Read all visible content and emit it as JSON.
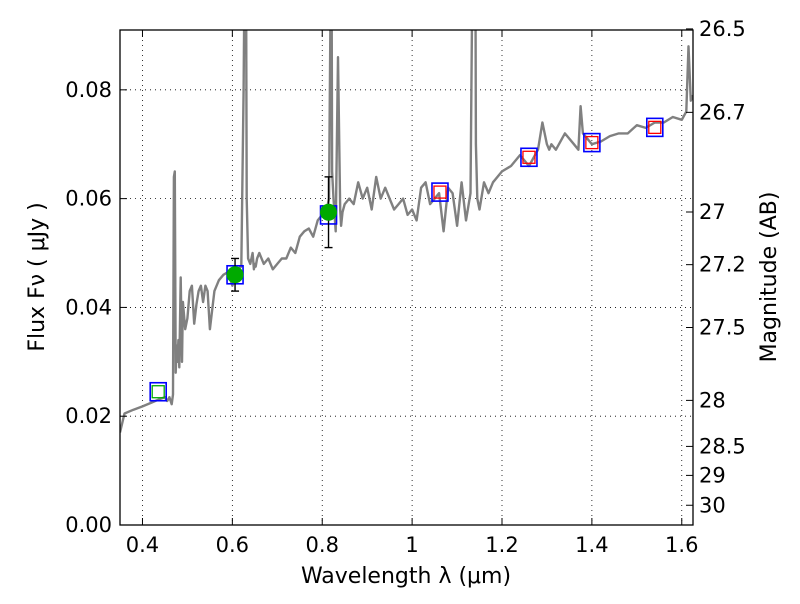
{
  "chart_data": {
    "type": "line",
    "xlabel": "Wavelength  λ (μm)",
    "ylabel": "Flux  Fν  ( μJy )",
    "ylabel_right": "Magnitude (AB)",
    "xlim": [
      0.35,
      1.625
    ],
    "ylim": [
      0.0,
      0.091
    ],
    "grid": true,
    "x_ticks": [
      0.4,
      0.6,
      0.8,
      1.0,
      1.2,
      1.4,
      1.6
    ],
    "x_tick_labels": [
      "0.4",
      "0.6",
      "0.8",
      "1",
      "1.2",
      "1.4",
      "1.6"
    ],
    "y_ticks": [
      0.0,
      0.02,
      0.04,
      0.06,
      0.08
    ],
    "y_tick_labels": [
      "0.00",
      "0.02",
      "0.04",
      "0.06",
      "0.08"
    ],
    "right_ticks": [
      {
        "label": "26.5",
        "flux": 0.0912
      },
      {
        "label": "26.7",
        "flux": 0.07586
      },
      {
        "label": "27",
        "flux": 0.05754
      },
      {
        "label": "27.2",
        "flux": 0.04786
      },
      {
        "label": "27.5",
        "flux": 0.03631
      },
      {
        "label": "28",
        "flux": 0.02291
      },
      {
        "label": "28.5",
        "flux": 0.01445
      },
      {
        "label": "29",
        "flux": 0.00912
      },
      {
        "label": "30",
        "flux": 0.00363
      }
    ],
    "series": [
      {
        "kind": "sed_model",
        "color": "#808080",
        "x": [
          0.35,
          0.36,
          0.38,
          0.4,
          0.42,
          0.44,
          0.45,
          0.455,
          0.46,
          0.465,
          0.468,
          0.47,
          0.472,
          0.474,
          0.476,
          0.478,
          0.48,
          0.482,
          0.485,
          0.488,
          0.49,
          0.495,
          0.5,
          0.505,
          0.51,
          0.515,
          0.52,
          0.525,
          0.53,
          0.535,
          0.54,
          0.545,
          0.55,
          0.56,
          0.57,
          0.58,
          0.59,
          0.6,
          0.61,
          0.62,
          0.625,
          0.628,
          0.63,
          0.632,
          0.635,
          0.64,
          0.645,
          0.648,
          0.65,
          0.652,
          0.655,
          0.66,
          0.67,
          0.68,
          0.69,
          0.7,
          0.71,
          0.72,
          0.73,
          0.74,
          0.75,
          0.76,
          0.77,
          0.78,
          0.79,
          0.8,
          0.81,
          0.815,
          0.818,
          0.82,
          0.822,
          0.825,
          0.83,
          0.835,
          0.84,
          0.842,
          0.845,
          0.85,
          0.86,
          0.87,
          0.88,
          0.89,
          0.9,
          0.91,
          0.92,
          0.93,
          0.94,
          0.95,
          0.96,
          0.97,
          0.98,
          0.99,
          1.0,
          1.01,
          1.02,
          1.03,
          1.04,
          1.05,
          1.06,
          1.07,
          1.08,
          1.09,
          1.1,
          1.11,
          1.12,
          1.13,
          1.135,
          1.14,
          1.142,
          1.145,
          1.15,
          1.16,
          1.17,
          1.18,
          1.2,
          1.22,
          1.24,
          1.26,
          1.28,
          1.29,
          1.3,
          1.305,
          1.31,
          1.32,
          1.34,
          1.36,
          1.37,
          1.375,
          1.38,
          1.4,
          1.42,
          1.44,
          1.46,
          1.48,
          1.5,
          1.52,
          1.54,
          1.56,
          1.58,
          1.6,
          1.61,
          1.615,
          1.62,
          1.625
        ],
        "y": [
          0.017,
          0.0205,
          0.0212,
          0.0218,
          0.0225,
          0.0232,
          0.0235,
          0.0228,
          0.0235,
          0.0222,
          0.024,
          0.064,
          0.065,
          0.028,
          0.033,
          0.03,
          0.034,
          0.029,
          0.0455,
          0.03,
          0.041,
          0.036,
          0.038,
          0.043,
          0.044,
          0.037,
          0.0405,
          0.043,
          0.044,
          0.041,
          0.044,
          0.043,
          0.036,
          0.043,
          0.045,
          0.046,
          0.0465,
          0.044,
          0.047,
          0.0475,
          0.08,
          0.11,
          0.12,
          0.06,
          0.049,
          0.048,
          0.05,
          0.047,
          0.048,
          0.0475,
          0.049,
          0.05,
          0.048,
          0.049,
          0.047,
          0.048,
          0.049,
          0.049,
          0.051,
          0.05,
          0.053,
          0.054,
          0.0545,
          0.053,
          0.056,
          0.057,
          0.058,
          0.06,
          0.09,
          0.13,
          0.065,
          0.06,
          0.054,
          0.086,
          0.058,
          0.055,
          0.0575,
          0.059,
          0.06,
          0.059,
          0.063,
          0.06,
          0.062,
          0.058,
          0.064,
          0.06,
          0.062,
          0.06,
          0.058,
          0.059,
          0.06,
          0.057,
          0.058,
          0.056,
          0.062,
          0.063,
          0.059,
          0.06,
          0.061,
          0.054,
          0.062,
          0.061,
          0.055,
          0.063,
          0.056,
          0.061,
          0.11,
          0.13,
          0.07,
          0.06,
          0.058,
          0.063,
          0.061,
          0.063,
          0.065,
          0.066,
          0.068,
          0.066,
          0.069,
          0.074,
          0.07,
          0.069,
          0.07,
          0.069,
          0.072,
          0.07,
          0.069,
          0.077,
          0.072,
          0.07,
          0.0705,
          0.0715,
          0.072,
          0.072,
          0.0735,
          0.073,
          0.074,
          0.074,
          0.075,
          0.0745,
          0.076,
          0.088,
          0.078,
          0.079
        ]
      },
      {
        "kind": "model_photometry",
        "marker": "open-square",
        "color": "#0000ff",
        "x": [
          0.435,
          0.606,
          0.814,
          1.062,
          1.26,
          1.4,
          1.54
        ],
        "y": [
          0.0245,
          0.046,
          0.057,
          0.0612,
          0.0676,
          0.0703,
          0.0731
        ]
      },
      {
        "kind": "observed_detection",
        "marker": "filled-circle",
        "color": "#00aa00",
        "x": [
          0.606,
          0.814
        ],
        "y": [
          0.046,
          0.0575
        ],
        "yerr": [
          0.003,
          0.0065
        ]
      },
      {
        "kind": "observed_limit",
        "marker": "small-open-square",
        "color": "#00aa00",
        "x": [
          0.435
        ],
        "y": [
          0.0245
        ]
      },
      {
        "kind": "observed_ir",
        "marker": "small-open-square",
        "color": "#ff0000",
        "x": [
          1.062,
          1.26,
          1.4,
          1.54
        ],
        "y": [
          0.0612,
          0.0676,
          0.0703,
          0.0731
        ]
      }
    ]
  }
}
